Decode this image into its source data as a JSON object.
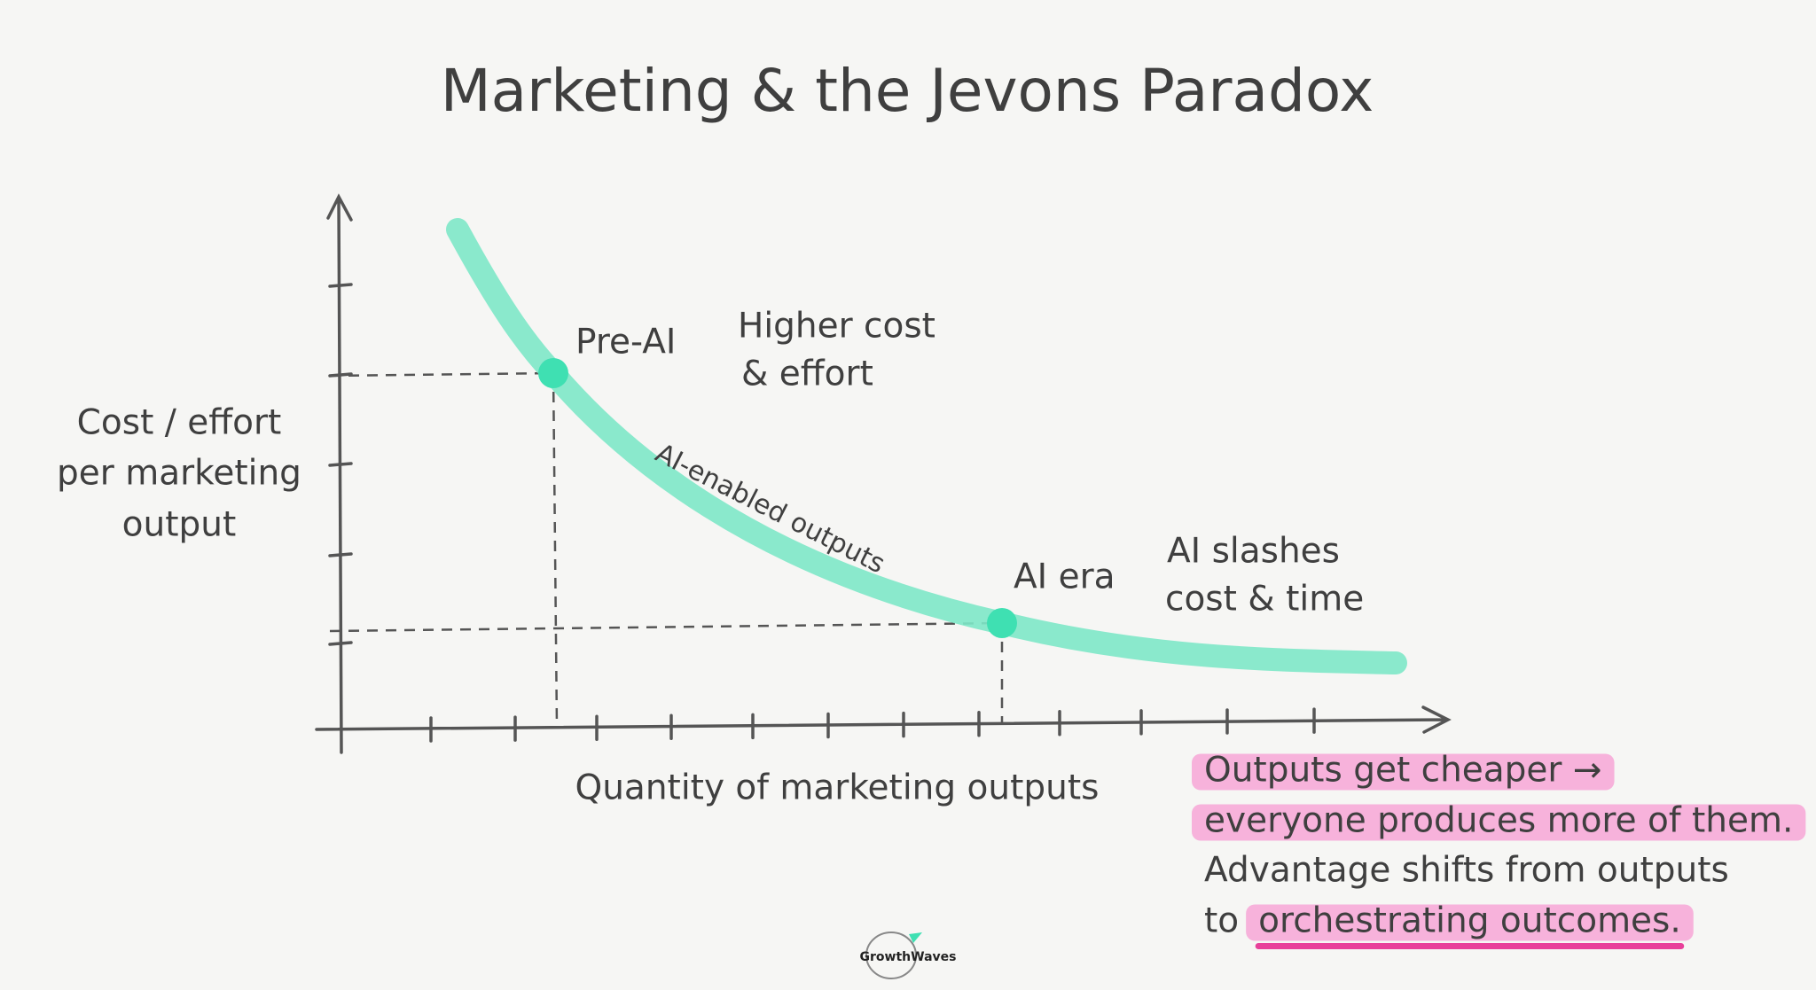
{
  "title": "Marketing & the Jevons Paradox",
  "y_axis_label": [
    "Cost / effort",
    "per marketing",
    "output"
  ],
  "x_axis_label": "Quantity of marketing outputs",
  "curve_label": "AI-enabled outputs",
  "points": [
    {
      "label": "Pre-AI",
      "note": [
        "Higher cost",
        "& effort"
      ]
    },
    {
      "label": "AI era",
      "note": [
        "AI slashes",
        "cost & time"
      ]
    }
  ],
  "callout": {
    "lines": [
      "Outputs get cheaper →",
      "everyone produces more of them.",
      "Advantage shifts from outputs"
    ],
    "last_lead": "to",
    "last_highlight": "orchestrating outcomes."
  },
  "logo": "GrowthWaves"
}
